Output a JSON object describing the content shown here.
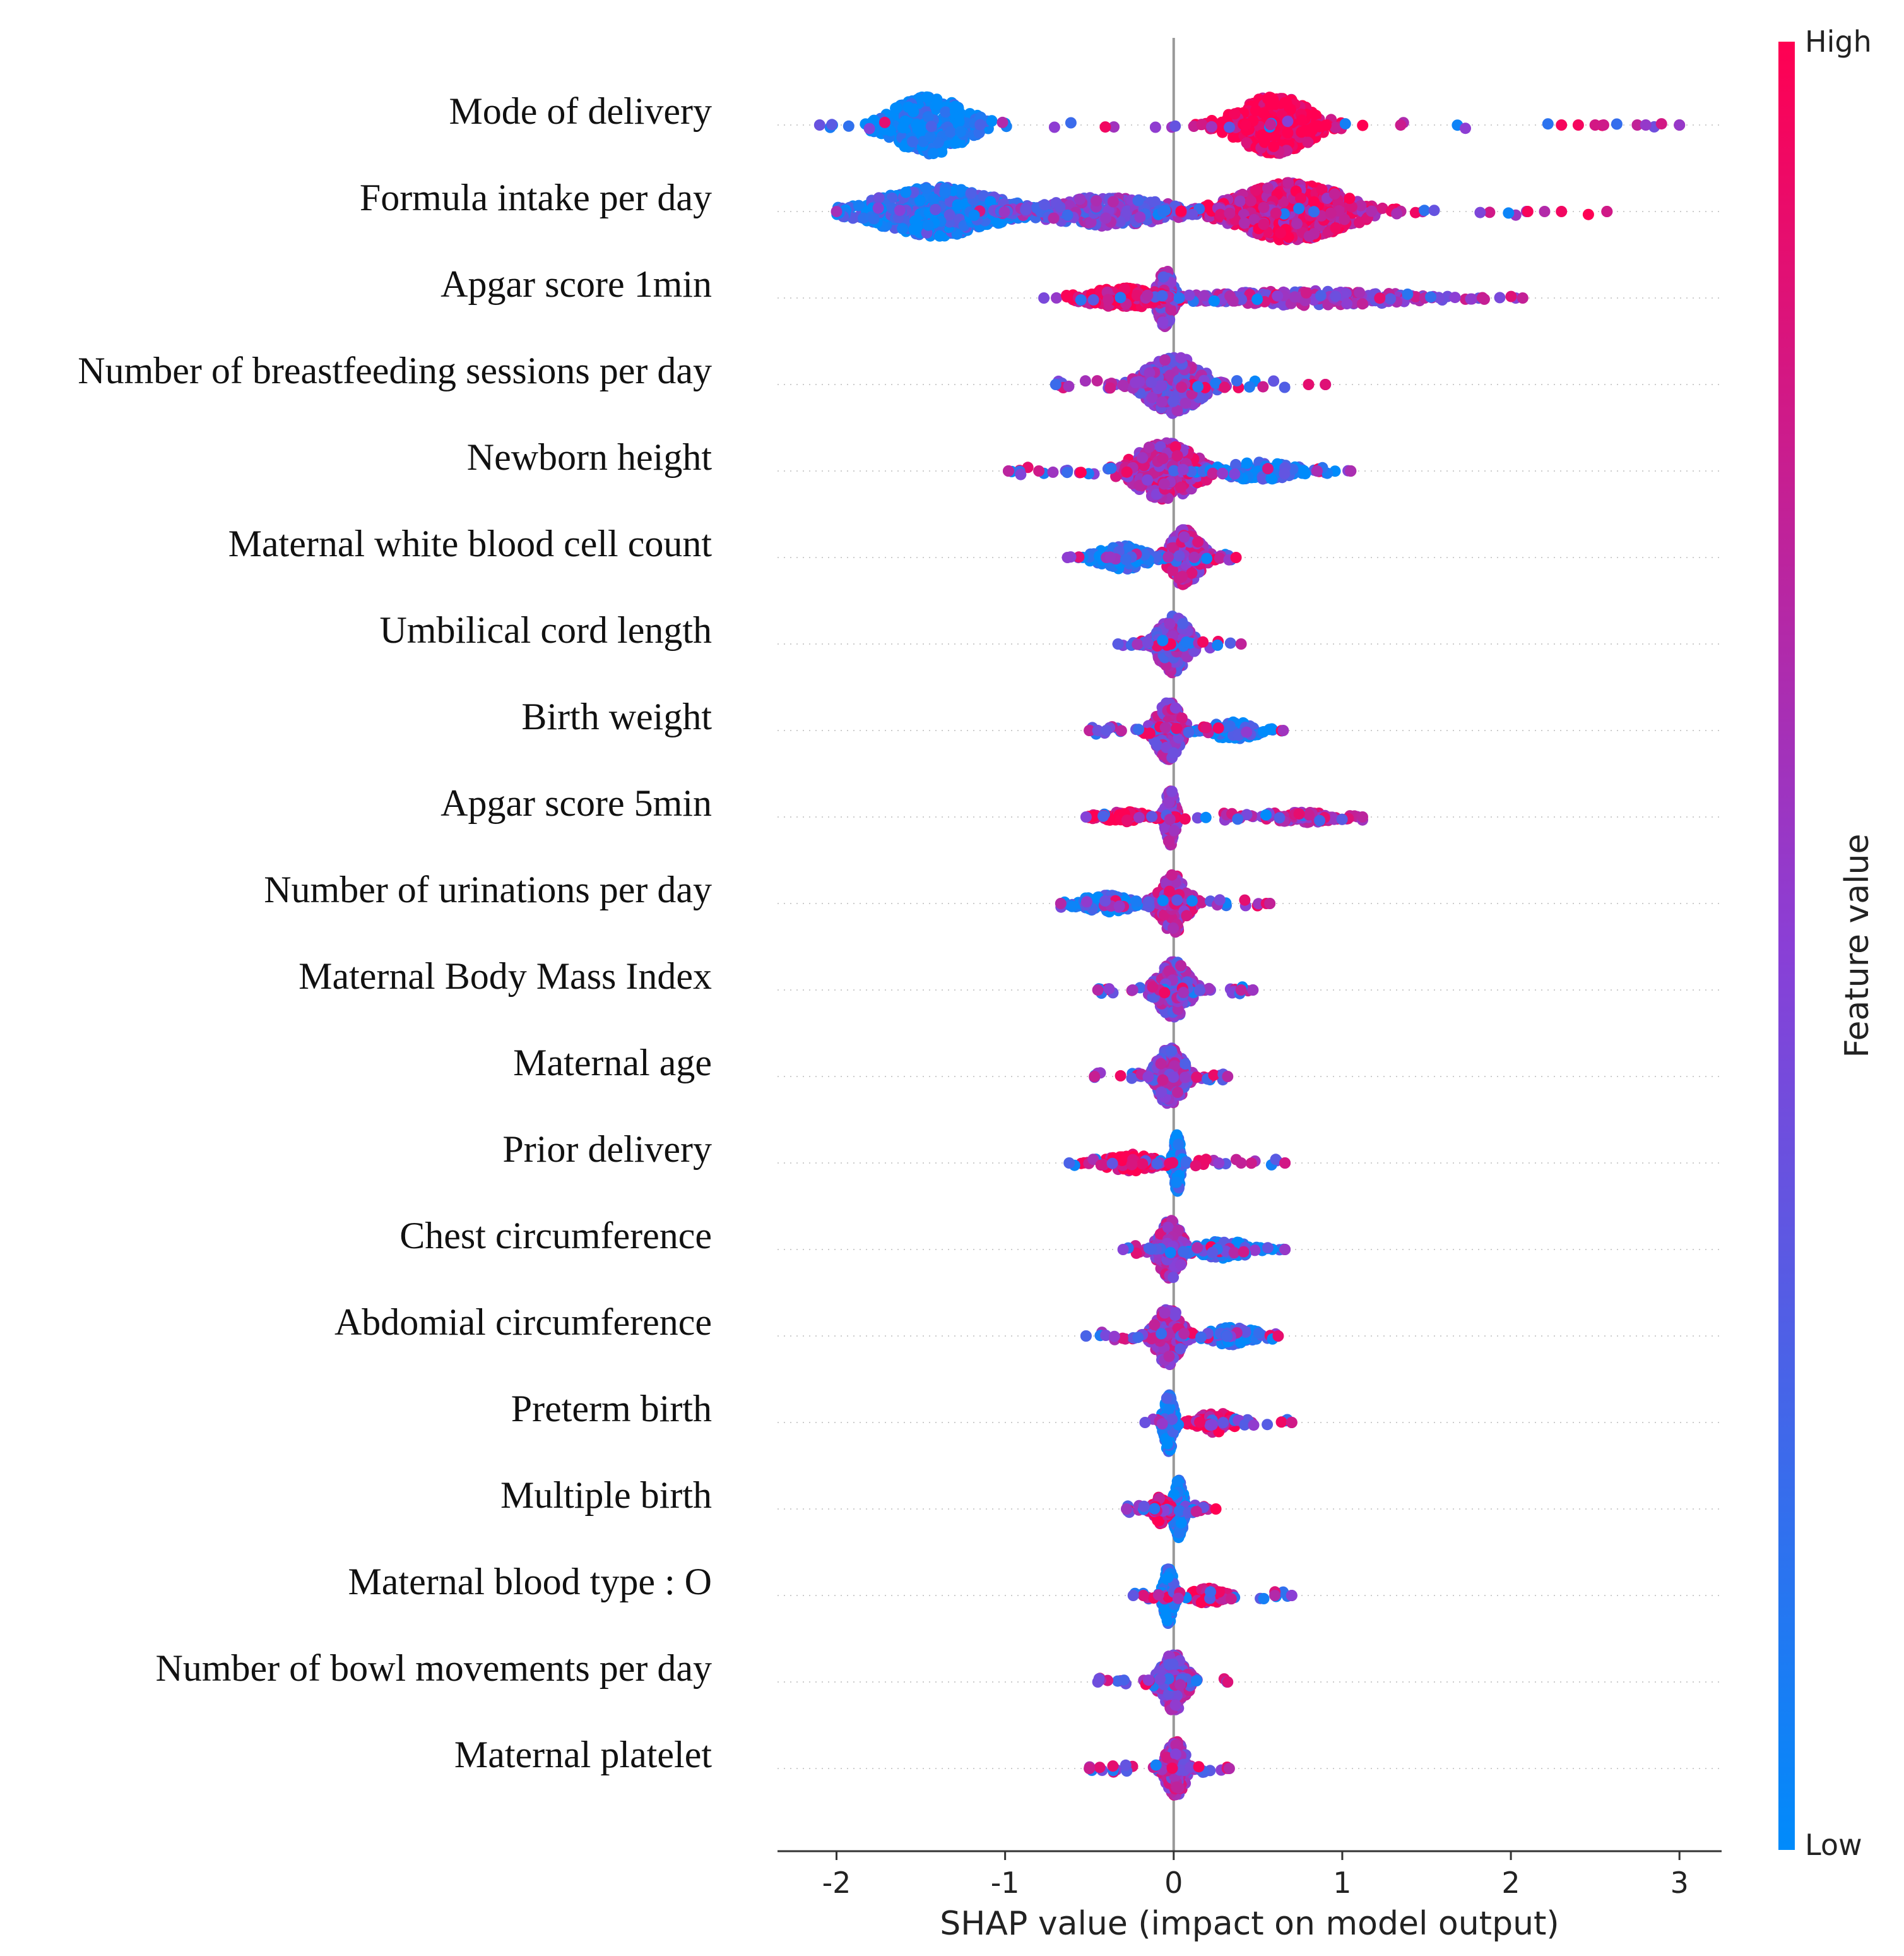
{
  "chart_data": {
    "type": "scatter",
    "subtype": "shap-beeswarm",
    "title": "",
    "xlabel": "SHAP value (impact on model output)",
    "ylabel": "",
    "xlim": [
      -2.35,
      3.25
    ],
    "xticks": [
      -2,
      -1,
      0,
      1,
      2,
      3
    ],
    "xtick_labels": [
      "-2",
      "-1",
      "0",
      "1",
      "2",
      "3"
    ],
    "colorbar": {
      "label": "Feature value",
      "high_label": "High",
      "low_label": "Low",
      "high_color": "#ff0052",
      "low_color": "#008bfb"
    },
    "features": [
      {
        "name": "Mode of delivery",
        "min": -2.1,
        "max": 3.0,
        "peaks": [
          {
            "x": -1.45,
            "w": 0.3,
            "h": 1.0,
            "hue": 0.0
          },
          {
            "x": 0.6,
            "w": 0.3,
            "h": 1.0,
            "hue": 1.0
          }
        ],
        "tail": [
          2.3,
          2.4,
          2.5,
          2.55,
          2.75,
          2.8,
          3.0
        ]
      },
      {
        "name": "Formula intake per day",
        "min": -2.0,
        "max": 2.57,
        "peaks": [
          {
            "x": -1.4,
            "w": 0.5,
            "h": 0.85,
            "hue": 0.15
          },
          {
            "x": -0.4,
            "w": 0.5,
            "h": 0.5,
            "hue": 0.45
          },
          {
            "x": 0.7,
            "w": 0.45,
            "h": 1.0,
            "hue": 0.8
          }
        ],
        "tail": [
          2.1,
          2.2,
          2.3,
          2.57
        ]
      },
      {
        "name": "Apgar score 1min",
        "min": -0.77,
        "max": 2.07,
        "peaks": [
          {
            "x": -0.05,
            "w": 0.06,
            "h": 1.0,
            "hue": 0.5
          },
          {
            "x": -0.3,
            "w": 0.3,
            "h": 0.35,
            "hue": 0.95
          },
          {
            "x": 0.8,
            "w": 0.8,
            "h": 0.25,
            "hue": 0.55
          }
        ],
        "tail": []
      },
      {
        "name": "Number of breastfeeding sessions per day",
        "min": -0.7,
        "max": 0.9,
        "peaks": [
          {
            "x": 0.0,
            "w": 0.22,
            "h": 1.0,
            "hue": 0.5
          }
        ],
        "tail": [
          0.8,
          0.9
        ]
      },
      {
        "name": "Newborn height",
        "min": -0.98,
        "max": 1.05,
        "peaks": [
          {
            "x": -0.05,
            "w": 0.25,
            "h": 1.0,
            "hue": 0.7
          },
          {
            "x": 0.5,
            "w": 0.3,
            "h": 0.3,
            "hue": 0.1
          }
        ],
        "tail": [
          -0.98,
          -0.8,
          0.85,
          1.05
        ]
      },
      {
        "name": "Maternal white blood cell count",
        "min": -0.63,
        "max": 0.37,
        "peaks": [
          {
            "x": 0.07,
            "w": 0.12,
            "h": 1.0,
            "hue": 0.65
          },
          {
            "x": -0.3,
            "w": 0.2,
            "h": 0.4,
            "hue": 0.1
          }
        ],
        "tail": []
      },
      {
        "name": "Umbilical cord length",
        "min": -0.33,
        "max": 0.4,
        "peaks": [
          {
            "x": 0.0,
            "w": 0.12,
            "h": 1.0,
            "hue": 0.5
          }
        ],
        "tail": []
      },
      {
        "name": "Birth weight",
        "min": -0.5,
        "max": 0.65,
        "peaks": [
          {
            "x": -0.03,
            "w": 0.1,
            "h": 1.0,
            "hue": 0.6
          },
          {
            "x": 0.35,
            "w": 0.2,
            "h": 0.3,
            "hue": 0.1
          }
        ],
        "tail": [
          -0.5,
          -0.45,
          -0.4
        ]
      },
      {
        "name": "Apgar score 5min",
        "min": -0.52,
        "max": 1.12,
        "peaks": [
          {
            "x": -0.02,
            "w": 0.04,
            "h": 1.0,
            "hue": 0.6
          },
          {
            "x": -0.3,
            "w": 0.2,
            "h": 0.2,
            "hue": 0.95
          },
          {
            "x": 0.75,
            "w": 0.3,
            "h": 0.2,
            "hue": 0.7
          }
        ],
        "tail": []
      },
      {
        "name": "Number of urinations per day",
        "min": -0.67,
        "max": 0.57,
        "peaks": [
          {
            "x": 0.0,
            "w": 0.11,
            "h": 1.0,
            "hue": 0.65
          },
          {
            "x": -0.4,
            "w": 0.2,
            "h": 0.3,
            "hue": 0.1
          }
        ],
        "tail": [
          0.55,
          0.57
        ]
      },
      {
        "name": "Maternal  Body Mass Index",
        "min": -0.45,
        "max": 0.47,
        "peaks": [
          {
            "x": 0.0,
            "w": 0.12,
            "h": 1.0,
            "hue": 0.5
          }
        ],
        "tail": [
          0.4,
          0.47
        ]
      },
      {
        "name": "Maternal age",
        "min": -0.47,
        "max": 0.32,
        "peaks": [
          {
            "x": -0.02,
            "w": 0.11,
            "h": 1.0,
            "hue": 0.5
          }
        ],
        "tail": []
      },
      {
        "name": "Prior delivery",
        "min": -0.62,
        "max": 0.66,
        "peaks": [
          {
            "x": 0.02,
            "w": 0.03,
            "h": 1.0,
            "hue": 0.05
          },
          {
            "x": -0.25,
            "w": 0.2,
            "h": 0.3,
            "hue": 0.95
          }
        ],
        "tail": [
          0.4,
          0.66
        ]
      },
      {
        "name": "Chest circumference",
        "min": -0.3,
        "max": 0.66,
        "peaks": [
          {
            "x": -0.02,
            "w": 0.1,
            "h": 1.0,
            "hue": 0.6
          },
          {
            "x": 0.3,
            "w": 0.2,
            "h": 0.3,
            "hue": 0.1
          }
        ],
        "tail": [
          0.66
        ]
      },
      {
        "name": "Abdomial circumference",
        "min": -0.52,
        "max": 0.62,
        "peaks": [
          {
            "x": -0.03,
            "w": 0.1,
            "h": 1.0,
            "hue": 0.6
          },
          {
            "x": 0.35,
            "w": 0.2,
            "h": 0.3,
            "hue": 0.15
          }
        ],
        "tail": [
          -0.52
        ]
      },
      {
        "name": "Preterm birth",
        "min": -0.17,
        "max": 0.7,
        "peaks": [
          {
            "x": -0.03,
            "w": 0.04,
            "h": 1.0,
            "hue": 0.05
          },
          {
            "x": 0.25,
            "w": 0.15,
            "h": 0.35,
            "hue": 0.9
          }
        ],
        "tail": [
          0.7
        ]
      },
      {
        "name": "Multiple birth",
        "min": -0.28,
        "max": 0.25,
        "peaks": [
          {
            "x": 0.03,
            "w": 0.04,
            "h": 1.0,
            "hue": 0.1
          },
          {
            "x": -0.08,
            "w": 0.06,
            "h": 0.5,
            "hue": 0.95
          }
        ],
        "tail": []
      },
      {
        "name": "Maternal blood type : O",
        "min": -0.24,
        "max": 0.7,
        "peaks": [
          {
            "x": -0.03,
            "w": 0.04,
            "h": 1.0,
            "hue": 0.05
          },
          {
            "x": 0.2,
            "w": 0.12,
            "h": 0.3,
            "hue": 0.9
          }
        ],
        "tail": [
          0.6,
          0.7
        ]
      },
      {
        "name": "Number of bowl movements per day",
        "min": -0.45,
        "max": 0.32,
        "peaks": [
          {
            "x": 0.0,
            "w": 0.1,
            "h": 1.0,
            "hue": 0.55
          }
        ],
        "tail": []
      },
      {
        "name": "Maternal platelet",
        "min": -0.5,
        "max": 0.33,
        "peaks": [
          {
            "x": 0.01,
            "w": 0.08,
            "h": 1.0,
            "hue": 0.6
          }
        ],
        "tail": [
          -0.5
        ]
      }
    ]
  }
}
